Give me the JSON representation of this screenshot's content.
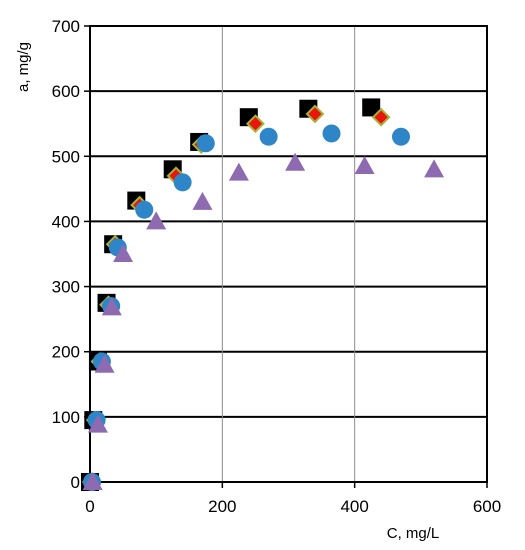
{
  "chart_data": {
    "type": "scatter",
    "title": "",
    "xlabel": "C, mg/L",
    "ylabel": "a, mg/g",
    "xlim": [
      0,
      600
    ],
    "ylim": [
      0,
      700
    ],
    "x_ticks": [
      0,
      200,
      400,
      600
    ],
    "y_ticks": [
      0,
      100,
      200,
      300,
      400,
      500,
      600,
      700
    ],
    "grid": {
      "horizontal": true,
      "vertical": true
    },
    "legend": "none",
    "series": [
      {
        "marker": "square",
        "color": "#000000",
        "points": [
          [
            0,
            0
          ],
          [
            5,
            95
          ],
          [
            12,
            185
          ],
          [
            25,
            275
          ],
          [
            35,
            365
          ],
          [
            70,
            432
          ],
          [
            125,
            480
          ],
          [
            165,
            522
          ],
          [
            240,
            560
          ],
          [
            330,
            573
          ],
          [
            425,
            575
          ]
        ]
      },
      {
        "marker": "diamond",
        "color": "#e8160c",
        "edge_color": "#a6b43a",
        "points": [
          [
            2,
            0
          ],
          [
            8,
            95
          ],
          [
            15,
            185
          ],
          [
            28,
            272
          ],
          [
            38,
            365
          ],
          [
            75,
            425
          ],
          [
            130,
            470
          ],
          [
            168,
            518
          ],
          [
            250,
            550
          ],
          [
            340,
            565
          ],
          [
            440,
            560
          ]
        ]
      },
      {
        "marker": "circle",
        "color": "#2e86c8",
        "points": [
          [
            3,
            0
          ],
          [
            10,
            95
          ],
          [
            18,
            185
          ],
          [
            32,
            270
          ],
          [
            42,
            360
          ],
          [
            82,
            418
          ],
          [
            140,
            460
          ],
          [
            175,
            520
          ],
          [
            270,
            530
          ],
          [
            365,
            535
          ],
          [
            470,
            530
          ]
        ]
      },
      {
        "marker": "triangle",
        "color": "#8e6bb0",
        "points": [
          [
            4,
            0
          ],
          [
            12,
            88
          ],
          [
            22,
            180
          ],
          [
            33,
            268
          ],
          [
            50,
            350
          ],
          [
            100,
            400
          ],
          [
            170,
            430
          ],
          [
            225,
            475
          ],
          [
            310,
            490
          ],
          [
            415,
            485
          ],
          [
            520,
            480
          ]
        ]
      }
    ]
  }
}
